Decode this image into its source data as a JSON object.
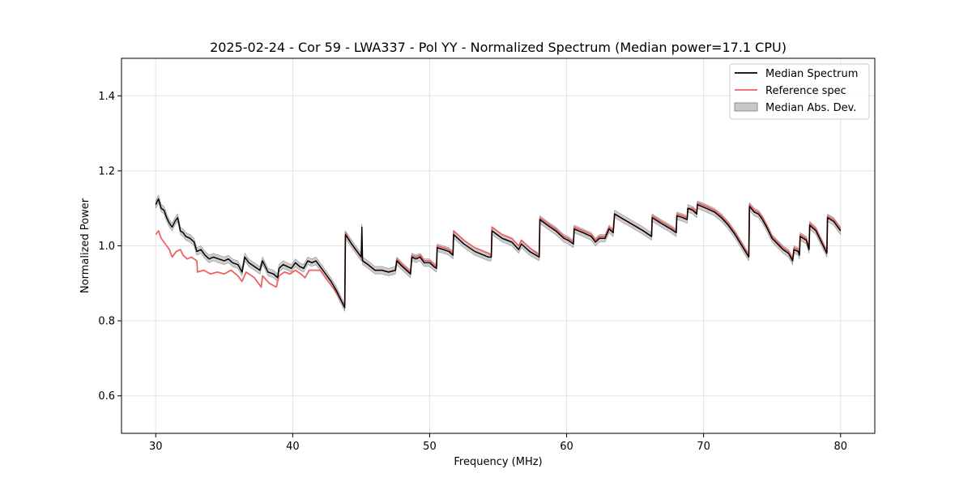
{
  "chart_data": {
    "type": "line",
    "title": "2025-02-24 - Cor 59 - LWA337 - Pol YY - Normalized Spectrum (Median power=17.1 CPU)",
    "xlabel": "Frequency (MHz)",
    "ylabel": "Normalized Power",
    "xlim": [
      27.5,
      82.5
    ],
    "ylim": [
      0.5,
      1.5
    ],
    "xticks": [
      30,
      40,
      50,
      60,
      70,
      80
    ],
    "yticks": [
      0.6,
      0.8,
      1.0,
      1.2,
      1.4
    ],
    "xtick_labels": [
      "30",
      "40",
      "50",
      "60",
      "70",
      "80"
    ],
    "ytick_labels": [
      "0.6",
      "0.8",
      "1.0",
      "1.2",
      "1.4"
    ],
    "grid": true,
    "legend_position": "top-right",
    "series": [
      {
        "name": "Median Spectrum",
        "color": "#000000",
        "points": [
          [
            30.0,
            1.11
          ],
          [
            30.2,
            1.125
          ],
          [
            30.4,
            1.1
          ],
          [
            30.6,
            1.095
          ],
          [
            30.8,
            1.075
          ],
          [
            31.0,
            1.06
          ],
          [
            31.2,
            1.05
          ],
          [
            31.4,
            1.065
          ],
          [
            31.6,
            1.075
          ],
          [
            31.8,
            1.04
          ],
          [
            32.0,
            1.035
          ],
          [
            32.2,
            1.025
          ],
          [
            32.5,
            1.02
          ],
          [
            32.8,
            1.01
          ],
          [
            33.0,
            0.985
          ],
          [
            33.3,
            0.99
          ],
          [
            33.6,
            0.975
          ],
          [
            33.9,
            0.965
          ],
          [
            34.2,
            0.97
          ],
          [
            34.6,
            0.965
          ],
          [
            35.0,
            0.96
          ],
          [
            35.3,
            0.965
          ],
          [
            35.6,
            0.955
          ],
          [
            36.0,
            0.95
          ],
          [
            36.3,
            0.93
          ],
          [
            36.5,
            0.97
          ],
          [
            36.8,
            0.955
          ],
          [
            37.2,
            0.945
          ],
          [
            37.6,
            0.935
          ],
          [
            37.8,
            0.96
          ],
          [
            38.2,
            0.93
          ],
          [
            38.6,
            0.925
          ],
          [
            38.9,
            0.915
          ],
          [
            39.0,
            0.94
          ],
          [
            39.3,
            0.95
          ],
          [
            39.6,
            0.945
          ],
          [
            39.9,
            0.94
          ],
          [
            40.2,
            0.955
          ],
          [
            40.5,
            0.945
          ],
          [
            40.8,
            0.94
          ],
          [
            41.1,
            0.96
          ],
          [
            41.4,
            0.955
          ],
          [
            41.7,
            0.96
          ],
          [
            42.0,
            0.945
          ],
          [
            42.4,
            0.925
          ],
          [
            42.8,
            0.905
          ],
          [
            43.2,
            0.88
          ],
          [
            43.6,
            0.85
          ],
          [
            43.8,
            0.835
          ],
          [
            43.85,
            1.03
          ],
          [
            44.3,
            1.005
          ],
          [
            44.7,
            0.985
          ],
          [
            45.0,
            0.97
          ],
          [
            45.05,
            1.05
          ],
          [
            45.1,
            0.96
          ],
          [
            45.5,
            0.95
          ],
          [
            46.0,
            0.935
          ],
          [
            46.5,
            0.935
          ],
          [
            47.0,
            0.93
          ],
          [
            47.5,
            0.935
          ],
          [
            47.6,
            0.96
          ],
          [
            48.0,
            0.945
          ],
          [
            48.6,
            0.925
          ],
          [
            48.7,
            0.97
          ],
          [
            49.0,
            0.965
          ],
          [
            49.3,
            0.97
          ],
          [
            49.6,
            0.955
          ],
          [
            50.0,
            0.955
          ],
          [
            50.3,
            0.945
          ],
          [
            50.5,
            0.94
          ],
          [
            50.55,
            0.995
          ],
          [
            51.0,
            0.99
          ],
          [
            51.4,
            0.985
          ],
          [
            51.7,
            0.975
          ],
          [
            51.75,
            1.03
          ],
          [
            52.5,
            1.005
          ],
          [
            53.3,
            0.985
          ],
          [
            54.3,
            0.97
          ],
          [
            54.5,
            0.97
          ],
          [
            54.55,
            1.04
          ],
          [
            55.3,
            1.02
          ],
          [
            56.0,
            1.01
          ],
          [
            56.5,
            0.99
          ],
          [
            56.7,
            1.005
          ],
          [
            57.3,
            0.985
          ],
          [
            58.0,
            0.97
          ],
          [
            58.05,
            1.07
          ],
          [
            58.6,
            1.055
          ],
          [
            59.2,
            1.04
          ],
          [
            59.8,
            1.02
          ],
          [
            60.1,
            1.015
          ],
          [
            60.5,
            1.005
          ],
          [
            60.55,
            1.045
          ],
          [
            61.2,
            1.035
          ],
          [
            61.8,
            1.025
          ],
          [
            62.1,
            1.01
          ],
          [
            62.4,
            1.02
          ],
          [
            62.8,
            1.02
          ],
          [
            63.1,
            1.045
          ],
          [
            63.4,
            1.035
          ],
          [
            63.5,
            1.085
          ],
          [
            64.2,
            1.07
          ],
          [
            64.9,
            1.055
          ],
          [
            65.6,
            1.04
          ],
          [
            66.2,
            1.025
          ],
          [
            66.25,
            1.075
          ],
          [
            66.9,
            1.06
          ],
          [
            67.6,
            1.045
          ],
          [
            68.0,
            1.035
          ],
          [
            68.05,
            1.08
          ],
          [
            68.5,
            1.075
          ],
          [
            68.8,
            1.07
          ],
          [
            68.85,
            1.1
          ],
          [
            69.2,
            1.095
          ],
          [
            69.5,
            1.085
          ],
          [
            69.55,
            1.11
          ],
          [
            70.2,
            1.1
          ],
          [
            70.8,
            1.09
          ],
          [
            71.3,
            1.075
          ],
          [
            71.8,
            1.055
          ],
          [
            72.3,
            1.03
          ],
          [
            72.8,
            1.0
          ],
          [
            73.3,
            0.97
          ],
          [
            73.35,
            1.105
          ],
          [
            73.7,
            1.09
          ],
          [
            74.0,
            1.085
          ],
          [
            74.3,
            1.07
          ],
          [
            74.6,
            1.05
          ],
          [
            75.0,
            1.02
          ],
          [
            75.4,
            1.005
          ],
          [
            75.8,
            0.99
          ],
          [
            76.2,
            0.98
          ],
          [
            76.5,
            0.96
          ],
          [
            76.6,
            0.99
          ],
          [
            76.9,
            0.985
          ],
          [
            77.0,
            0.975
          ],
          [
            77.05,
            1.025
          ],
          [
            77.5,
            1.015
          ],
          [
            77.7,
            0.99
          ],
          [
            77.75,
            1.055
          ],
          [
            78.2,
            1.04
          ],
          [
            78.6,
            1.01
          ],
          [
            79.0,
            0.98
          ],
          [
            79.05,
            1.075
          ],
          [
            79.5,
            1.065
          ],
          [
            80.0,
            1.04
          ]
        ]
      },
      {
        "name": "Reference spec",
        "color": "#f06262",
        "points": [
          [
            30.0,
            1.03
          ],
          [
            30.2,
            1.04
          ],
          [
            30.4,
            1.02
          ],
          [
            30.6,
            1.01
          ],
          [
            30.8,
            1.0
          ],
          [
            31.0,
            0.99
          ],
          [
            31.2,
            0.97
          ],
          [
            31.5,
            0.985
          ],
          [
            31.8,
            0.99
          ],
          [
            32.0,
            0.975
          ],
          [
            32.3,
            0.965
          ],
          [
            32.6,
            0.97
          ],
          [
            33.0,
            0.96
          ],
          [
            33.05,
            0.93
          ],
          [
            33.5,
            0.935
          ],
          [
            34.0,
            0.925
          ],
          [
            34.5,
            0.93
          ],
          [
            35.0,
            0.925
          ],
          [
            35.5,
            0.935
          ],
          [
            36.0,
            0.92
          ],
          [
            36.3,
            0.905
          ],
          [
            36.6,
            0.93
          ],
          [
            37.2,
            0.915
          ],
          [
            37.7,
            0.89
          ],
          [
            37.8,
            0.92
          ],
          [
            38.3,
            0.9
          ],
          [
            38.8,
            0.89
          ],
          [
            39.0,
            0.92
          ],
          [
            39.4,
            0.93
          ],
          [
            39.8,
            0.925
          ],
          [
            40.2,
            0.935
          ],
          [
            40.6,
            0.925
          ],
          [
            40.9,
            0.915
          ],
          [
            41.2,
            0.935
          ],
          [
            41.6,
            0.935
          ],
          [
            42.0,
            0.935
          ],
          [
            42.4,
            0.915
          ],
          [
            42.8,
            0.895
          ],
          [
            43.2,
            0.875
          ],
          [
            43.6,
            0.85
          ],
          [
            43.8,
            0.84
          ],
          [
            43.85,
            1.035
          ],
          [
            44.3,
            1.005
          ],
          [
            44.7,
            0.985
          ],
          [
            45.0,
            0.97
          ],
          [
            45.1,
            0.96
          ],
          [
            45.5,
            0.95
          ],
          [
            46.0,
            0.935
          ],
          [
            46.5,
            0.935
          ],
          [
            47.0,
            0.93
          ],
          [
            47.5,
            0.935
          ],
          [
            47.6,
            0.965
          ],
          [
            48.0,
            0.95
          ],
          [
            48.6,
            0.93
          ],
          [
            48.7,
            0.975
          ],
          [
            49.0,
            0.97
          ],
          [
            49.3,
            0.975
          ],
          [
            49.6,
            0.96
          ],
          [
            50.0,
            0.96
          ],
          [
            50.3,
            0.95
          ],
          [
            50.5,
            0.945
          ],
          [
            50.55,
            1.0
          ],
          [
            51.0,
            0.995
          ],
          [
            51.4,
            0.99
          ],
          [
            51.7,
            0.98
          ],
          [
            51.75,
            1.04
          ],
          [
            52.5,
            1.015
          ],
          [
            53.3,
            0.995
          ],
          [
            54.3,
            0.98
          ],
          [
            54.5,
            0.975
          ],
          [
            54.55,
            1.05
          ],
          [
            55.3,
            1.03
          ],
          [
            56.0,
            1.02
          ],
          [
            56.5,
            1.0
          ],
          [
            56.7,
            1.015
          ],
          [
            57.3,
            0.995
          ],
          [
            58.0,
            0.975
          ],
          [
            58.05,
            1.075
          ],
          [
            58.6,
            1.06
          ],
          [
            59.2,
            1.045
          ],
          [
            59.8,
            1.025
          ],
          [
            60.1,
            1.02
          ],
          [
            60.5,
            1.01
          ],
          [
            60.55,
            1.05
          ],
          [
            61.2,
            1.04
          ],
          [
            61.8,
            1.03
          ],
          [
            62.1,
            1.015
          ],
          [
            62.4,
            1.025
          ],
          [
            62.8,
            1.025
          ],
          [
            63.1,
            1.05
          ],
          [
            63.4,
            1.04
          ],
          [
            63.5,
            1.085
          ],
          [
            64.2,
            1.07
          ],
          [
            64.9,
            1.055
          ],
          [
            65.6,
            1.04
          ],
          [
            66.2,
            1.025
          ],
          [
            66.25,
            1.08
          ],
          [
            66.9,
            1.065
          ],
          [
            67.6,
            1.05
          ],
          [
            68.0,
            1.04
          ],
          [
            68.05,
            1.085
          ],
          [
            68.5,
            1.08
          ],
          [
            68.8,
            1.075
          ],
          [
            68.85,
            1.1
          ],
          [
            69.2,
            1.1
          ],
          [
            69.5,
            1.09
          ],
          [
            69.55,
            1.115
          ],
          [
            70.2,
            1.105
          ],
          [
            70.8,
            1.095
          ],
          [
            71.3,
            1.08
          ],
          [
            71.8,
            1.06
          ],
          [
            72.3,
            1.035
          ],
          [
            72.8,
            1.005
          ],
          [
            73.3,
            0.975
          ],
          [
            73.35,
            1.11
          ],
          [
            73.7,
            1.095
          ],
          [
            74.0,
            1.09
          ],
          [
            74.3,
            1.075
          ],
          [
            74.6,
            1.055
          ],
          [
            75.0,
            1.025
          ],
          [
            75.4,
            1.01
          ],
          [
            75.8,
            0.995
          ],
          [
            76.2,
            0.985
          ],
          [
            76.5,
            0.965
          ],
          [
            76.6,
            0.995
          ],
          [
            76.9,
            0.99
          ],
          [
            77.0,
            0.98
          ],
          [
            77.05,
            1.03
          ],
          [
            77.5,
            1.02
          ],
          [
            77.7,
            0.995
          ],
          [
            77.75,
            1.06
          ],
          [
            78.2,
            1.045
          ],
          [
            78.6,
            1.015
          ],
          [
            79.0,
            0.985
          ],
          [
            79.05,
            1.08
          ],
          [
            79.5,
            1.07
          ],
          [
            80.0,
            1.045
          ]
        ]
      }
    ],
    "band": {
      "name": "Median Abs. Dev.",
      "color": "#c8c8c8",
      "edge_color": "#909090",
      "half_width": 0.01
    }
  }
}
